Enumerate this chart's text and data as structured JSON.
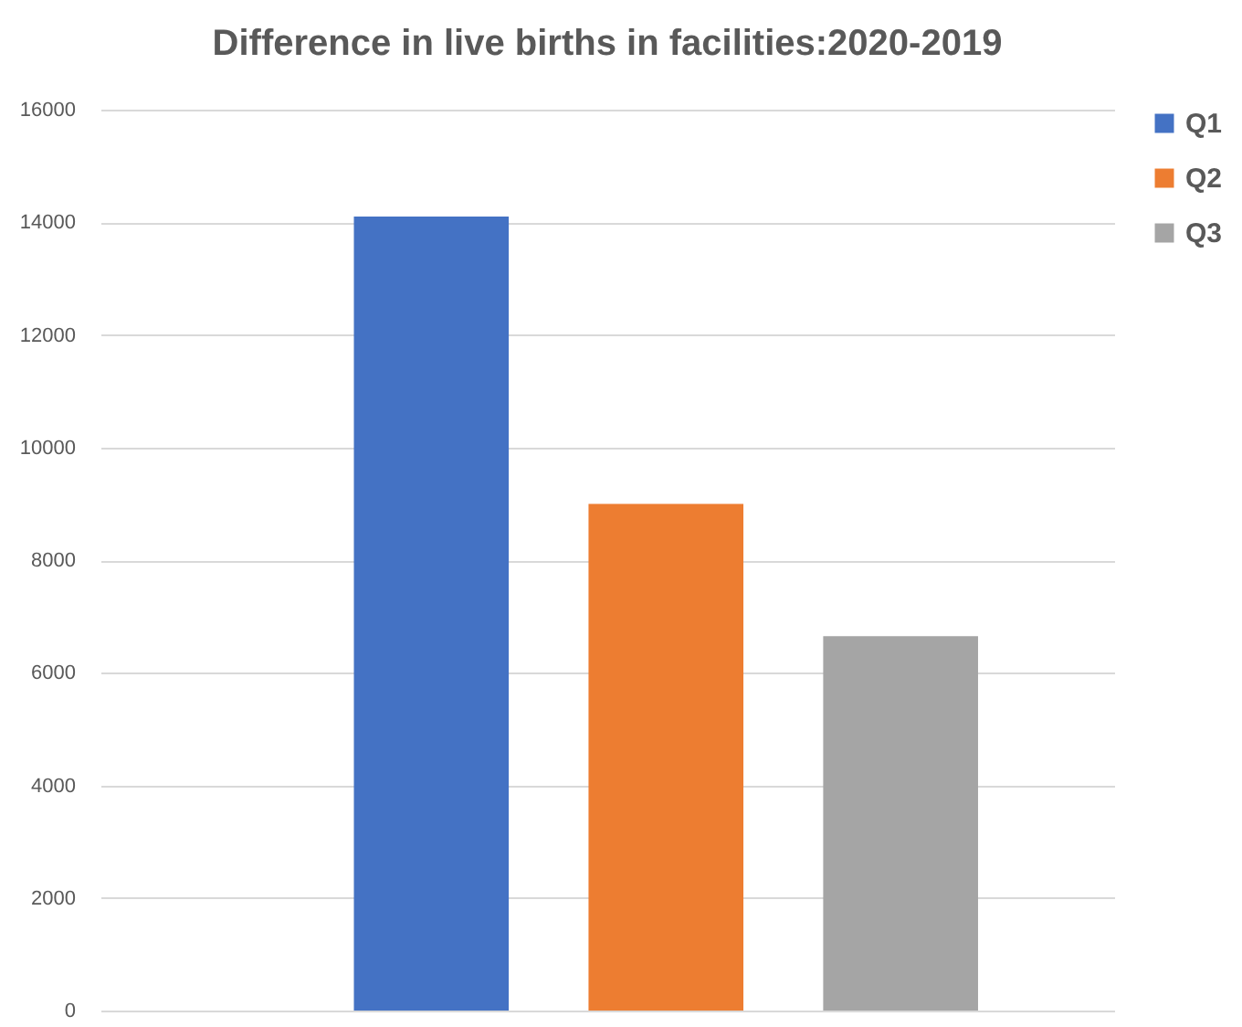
{
  "chart_data": {
    "type": "bar",
    "title": "Difference in live births in facilities:2020-2019",
    "categories": [
      null
    ],
    "series": [
      {
        "name": "Q1",
        "color": "#4472c4",
        "values": [
          14100
        ]
      },
      {
        "name": "Q2",
        "color": "#ed7d31",
        "values": [
          9000
        ]
      },
      {
        "name": "Q3",
        "color": "#a5a5a5",
        "values": [
          6650
        ]
      }
    ],
    "ylim": [
      0,
      16000
    ],
    "yticks": [
      0,
      2000,
      4000,
      6000,
      8000,
      10000,
      12000,
      14000,
      16000
    ],
    "grid": "y",
    "legend": "right",
    "tick_labels": "y"
  }
}
